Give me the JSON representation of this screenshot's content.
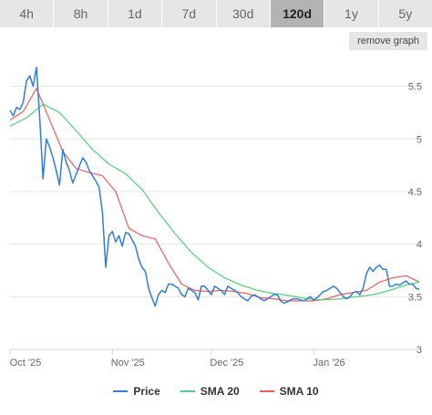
{
  "tabs": [
    {
      "label": "4h",
      "active": false
    },
    {
      "label": "8h",
      "active": false
    },
    {
      "label": "1d",
      "active": false
    },
    {
      "label": "7d",
      "active": false
    },
    {
      "label": "30d",
      "active": false
    },
    {
      "label": "120d",
      "active": true
    },
    {
      "label": "1y",
      "active": false
    },
    {
      "label": "5y",
      "active": false
    }
  ],
  "remove_graph_label": "remove graph",
  "chart_data": {
    "type": "line",
    "ylim": [
      3,
      5.8
    ],
    "yticks": [
      "3",
      "3.5",
      "4",
      "4.5",
      "5",
      "5.5"
    ],
    "xlim": [
      0,
      124
    ],
    "xticks": [
      {
        "label": "Oct '25",
        "x": 0
      },
      {
        "label": "Nov '25",
        "x": 31
      },
      {
        "label": "Dec '25",
        "x": 61
      },
      {
        "label": "Jan '26",
        "x": 92
      }
    ],
    "grid": "horizontal",
    "legend_position": "bottom",
    "series": [
      {
        "name": "Price",
        "color": "#2f7ed8",
        "x": [
          0,
          1,
          2,
          3,
          4,
          5,
          6,
          7,
          8,
          9,
          10,
          11,
          12,
          13,
          14,
          15,
          16,
          17,
          18,
          19,
          20,
          21,
          22,
          23,
          24,
          25,
          26,
          27,
          28,
          29,
          30,
          31,
          32,
          33,
          34,
          35,
          36,
          37,
          38,
          39,
          40,
          41,
          42,
          43,
          44,
          45,
          46,
          47,
          48,
          49,
          50,
          51,
          52,
          53,
          54,
          55,
          56,
          57,
          58,
          59,
          60,
          61,
          62,
          63,
          64,
          65,
          66,
          67,
          68,
          69,
          70,
          71,
          72,
          73,
          74,
          75,
          76,
          77,
          78,
          79,
          80,
          81,
          82,
          83,
          84,
          85,
          86,
          87,
          88,
          89,
          90,
          91,
          92,
          93,
          94,
          95,
          96,
          97,
          98,
          99,
          100,
          101,
          102,
          103,
          104,
          105,
          106,
          107,
          108,
          109,
          110,
          111,
          112,
          113,
          114,
          115,
          116,
          117,
          118,
          119,
          120,
          121,
          122,
          123,
          124
        ],
        "values": [
          5.27,
          5.22,
          5.3,
          5.28,
          5.35,
          5.55,
          5.6,
          5.5,
          5.68,
          5.2,
          4.62,
          5,
          4.92,
          4.82,
          4.7,
          4.56,
          4.9,
          4.78,
          4.7,
          4.58,
          4.66,
          4.74,
          4.82,
          4.78,
          4.7,
          4.65,
          4.6,
          4.54,
          4.3,
          3.78,
          4.08,
          4.12,
          4.02,
          4.08,
          3.98,
          4.11,
          4.1,
          4.04,
          3.98,
          3.86,
          3.78,
          3.74,
          3.58,
          3.49,
          3.41,
          3.52,
          3.56,
          3.54,
          3.62,
          3.62,
          3.6,
          3.58,
          3.52,
          3.5,
          3.58,
          3.56,
          3.54,
          3.47,
          3.6,
          3.6,
          3.56,
          3.52,
          3.6,
          3.58,
          3.56,
          3.52,
          3.6,
          3.58,
          3.56,
          3.54,
          3.5,
          3.48,
          3.46,
          3.5,
          3.52,
          3.5,
          3.48,
          3.46,
          3.48,
          3.5,
          3.52,
          3.52,
          3.46,
          3.44,
          3.45,
          3.47,
          3.48,
          3.48,
          3.47,
          3.46,
          3.48,
          3.5,
          3.47,
          3.49,
          3.52,
          3.55,
          3.56,
          3.58,
          3.6,
          3.58,
          3.54,
          3.5,
          3.48,
          3.5,
          3.54,
          3.55,
          3.52,
          3.58,
          3.72,
          3.78,
          3.74,
          3.78,
          3.8,
          3.76,
          3.76,
          3.6,
          3.6,
          3.62,
          3.61,
          3.63,
          3.65,
          3.62,
          3.62,
          3.58,
          3.57
        ]
      },
      {
        "name": "SMA 20",
        "color": "#4fd175",
        "x": [
          0,
          5,
          10,
          15,
          20,
          25,
          30,
          35,
          40,
          45,
          50,
          55,
          60,
          65,
          70,
          75,
          80,
          85,
          90,
          95,
          100,
          105,
          110,
          115,
          120,
          124
        ],
        "values": [
          5.12,
          5.2,
          5.33,
          5.25,
          5.08,
          4.9,
          4.76,
          4.67,
          4.52,
          4.3,
          4.1,
          3.92,
          3.78,
          3.68,
          3.61,
          3.56,
          3.53,
          3.51,
          3.48,
          3.47,
          3.48,
          3.5,
          3.52,
          3.56,
          3.61,
          3.64
        ]
      },
      {
        "name": "SMA 10",
        "color": "#f45b5b",
        "x": [
          0,
          4,
          8,
          12,
          16,
          20,
          24,
          28,
          32,
          36,
          40,
          44,
          48,
          52,
          56,
          60,
          64,
          68,
          72,
          76,
          80,
          84,
          88,
          92,
          96,
          100,
          104,
          108,
          112,
          116,
          120,
          124
        ],
        "values": [
          5.18,
          5.26,
          5.48,
          5.18,
          4.88,
          4.72,
          4.68,
          4.65,
          4.5,
          4.15,
          4.08,
          4.05,
          3.82,
          3.62,
          3.56,
          3.55,
          3.56,
          3.55,
          3.53,
          3.49,
          3.48,
          3.46,
          3.46,
          3.46,
          3.48,
          3.52,
          3.54,
          3.56,
          3.64,
          3.68,
          3.7,
          3.64
        ]
      }
    ]
  }
}
